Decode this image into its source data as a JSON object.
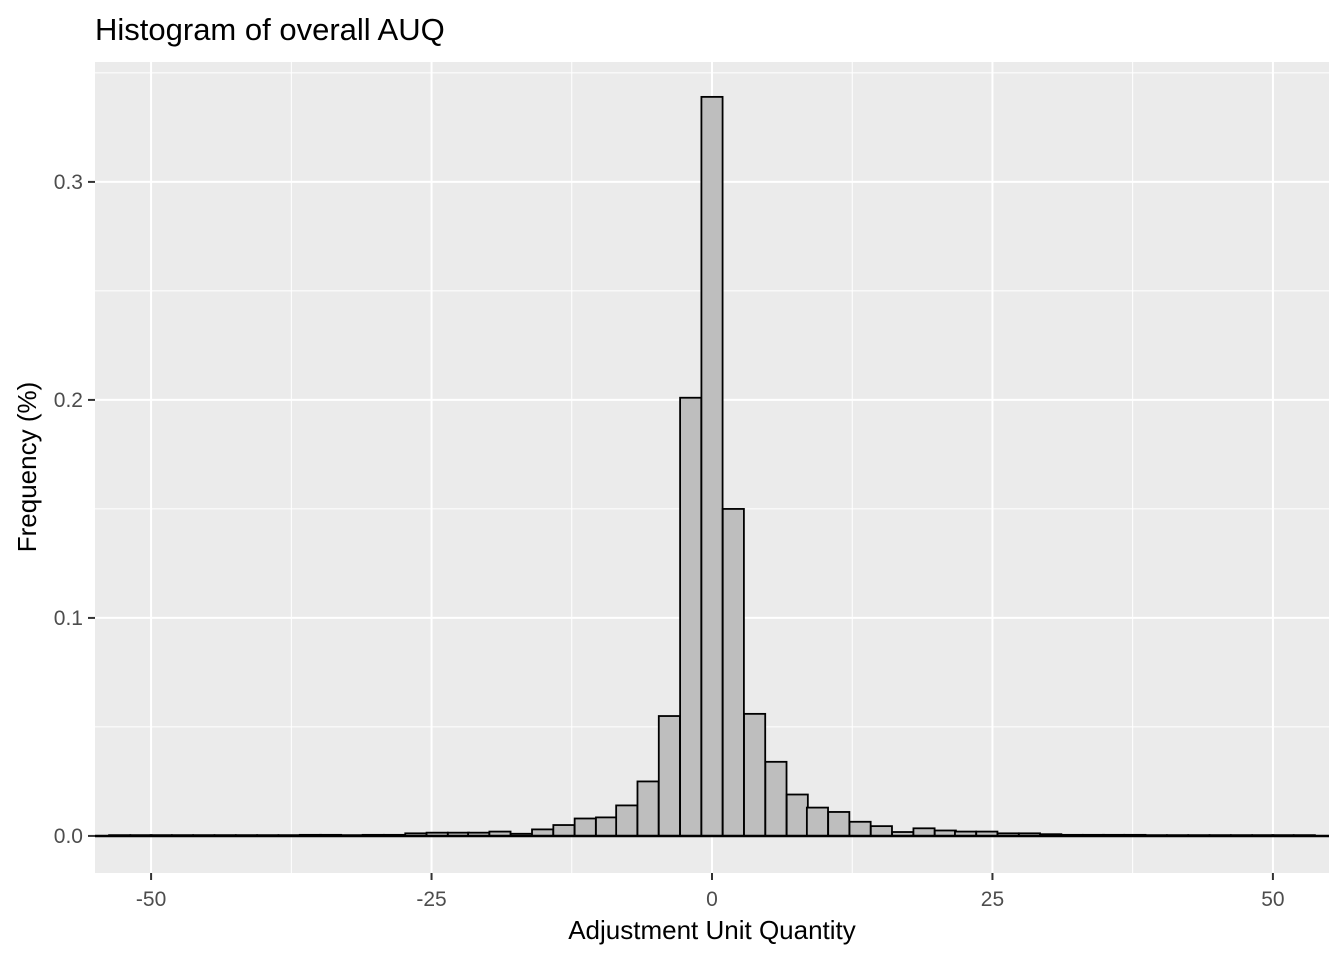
{
  "chart_data": {
    "type": "bar",
    "title": "Histogram of overall AUQ",
    "xlabel": "Adjustment Unit Quantity",
    "ylabel": "Frequency (%)",
    "xlim": [
      -55,
      55
    ],
    "ylim": [
      -0.017,
      0.355
    ],
    "x_ticks": [
      -50,
      -25,
      0,
      25,
      50
    ],
    "x_tick_labels": [
      "-50",
      "-25",
      "0",
      "25",
      "50"
    ],
    "y_ticks": [
      0.0,
      0.1,
      0.2,
      0.3
    ],
    "y_tick_labels": [
      "0.0",
      "0.1",
      "0.2",
      "0.3"
    ],
    "bin_width": 1.887,
    "bins": [
      {
        "x": -52.8,
        "value": 0.0003
      },
      {
        "x": -50.9,
        "value": 0.0003
      },
      {
        "x": -49.1,
        "value": 0.0003
      },
      {
        "x": -47.2,
        "value": 0.0003
      },
      {
        "x": -45.3,
        "value": 0.0003
      },
      {
        "x": -43.4,
        "value": 0.0003
      },
      {
        "x": -41.5,
        "value": 0.0003
      },
      {
        "x": -39.6,
        "value": 0.0003
      },
      {
        "x": -37.7,
        "value": 0.0003
      },
      {
        "x": -35.8,
        "value": 0.0005
      },
      {
        "x": -34.0,
        "value": 0.0005
      },
      {
        "x": -32.1,
        "value": 0.0003
      },
      {
        "x": -30.2,
        "value": 0.0005
      },
      {
        "x": -28.3,
        "value": 0.0005
      },
      {
        "x": -26.4,
        "value": 0.0012
      },
      {
        "x": -24.5,
        "value": 0.0015
      },
      {
        "x": -22.6,
        "value": 0.0015
      },
      {
        "x": -20.8,
        "value": 0.0015
      },
      {
        "x": -18.9,
        "value": 0.002
      },
      {
        "x": -17.0,
        "value": 0.001
      },
      {
        "x": -15.1,
        "value": 0.003
      },
      {
        "x": -13.2,
        "value": 0.005
      },
      {
        "x": -11.3,
        "value": 0.008
      },
      {
        "x": -9.4,
        "value": 0.0085
      },
      {
        "x": -7.6,
        "value": 0.014
      },
      {
        "x": -5.7,
        "value": 0.025
      },
      {
        "x": -3.8,
        "value": 0.055
      },
      {
        "x": -1.9,
        "value": 0.201
      },
      {
        "x": 0.0,
        "value": 0.339
      },
      {
        "x": 1.9,
        "value": 0.15
      },
      {
        "x": 3.8,
        "value": 0.056
      },
      {
        "x": 5.7,
        "value": 0.034
      },
      {
        "x": 7.6,
        "value": 0.019
      },
      {
        "x": 9.4,
        "value": 0.013
      },
      {
        "x": 11.3,
        "value": 0.011
      },
      {
        "x": 13.2,
        "value": 0.0065
      },
      {
        "x": 15.1,
        "value": 0.0045
      },
      {
        "x": 17.0,
        "value": 0.0018
      },
      {
        "x": 18.9,
        "value": 0.0035
      },
      {
        "x": 20.8,
        "value": 0.0025
      },
      {
        "x": 22.6,
        "value": 0.002
      },
      {
        "x": 24.5,
        "value": 0.002
      },
      {
        "x": 26.4,
        "value": 0.0012
      },
      {
        "x": 28.3,
        "value": 0.0012
      },
      {
        "x": 30.2,
        "value": 0.0008
      },
      {
        "x": 32.1,
        "value": 0.0005
      },
      {
        "x": 34.0,
        "value": 0.0005
      },
      {
        "x": 35.8,
        "value": 0.0005
      },
      {
        "x": 37.7,
        "value": 0.0005
      },
      {
        "x": 39.6,
        "value": 0.0003
      },
      {
        "x": 41.5,
        "value": 0.0003
      },
      {
        "x": 43.4,
        "value": 0.0003
      },
      {
        "x": 45.3,
        "value": 0.0003
      },
      {
        "x": 47.2,
        "value": 0.0003
      },
      {
        "x": 49.1,
        "value": 0.0003
      },
      {
        "x": 50.9,
        "value": 0.0003
      },
      {
        "x": 52.8,
        "value": 0.0003
      }
    ],
    "grid": true,
    "panel_background": "#ebebeb",
    "bar_fill": "#bebebe",
    "bar_outline": "#000000",
    "grid_color": "#ffffff",
    "axis_text_color": "#4d4d4d",
    "title_color": "#000000"
  }
}
